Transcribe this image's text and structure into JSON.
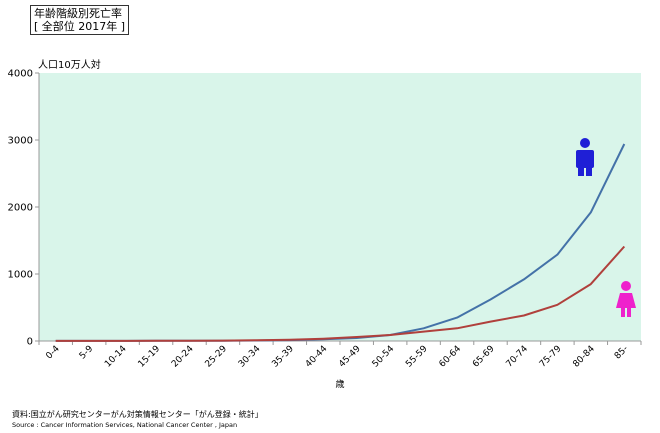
{
  "chart_data": {
    "type": "line",
    "title": "年齢階級別死亡率",
    "subtitle": "[ 全部位 2017年 ]",
    "ylabel": "人口10万人対",
    "xlabel": "歳",
    "ylim": [
      0,
      4000
    ],
    "yticks": [
      0,
      1000,
      2000,
      3000,
      4000
    ],
    "grid": false,
    "categories": [
      "0-4",
      "5-9",
      "10-14",
      "15-19",
      "20-24",
      "25-29",
      "30-34",
      "35-39",
      "40-44",
      "45-49",
      "50-54",
      "55-59",
      "60-64",
      "65-69",
      "70-74",
      "75-79",
      "80-84",
      "85-"
    ],
    "series": [
      {
        "name": "male",
        "color": "#4472a8",
        "icon": "male-figure-icon",
        "values": [
          2,
          2,
          2,
          3,
          4,
          5,
          8,
          14,
          25,
          45,
          90,
          190,
          350,
          620,
          920,
          1290,
          1920,
          2940
        ]
      },
      {
        "name": "female",
        "color": "#b0403c",
        "icon": "female-figure-icon",
        "values": [
          2,
          2,
          2,
          3,
          4,
          6,
          12,
          20,
          35,
          60,
          90,
          140,
          190,
          290,
          380,
          540,
          850,
          1410
        ]
      }
    ],
    "plot_bg": "#d9f5ea",
    "male_icon_color": "#1f1fd6",
    "female_icon_color": "#ee22cc"
  },
  "source": {
    "ja": "資料:国立がん研究センターがん対策情報センター「がん登録・統計」",
    "en": "Source : Cancer Information Services, National Cancer Center , Japan"
  }
}
